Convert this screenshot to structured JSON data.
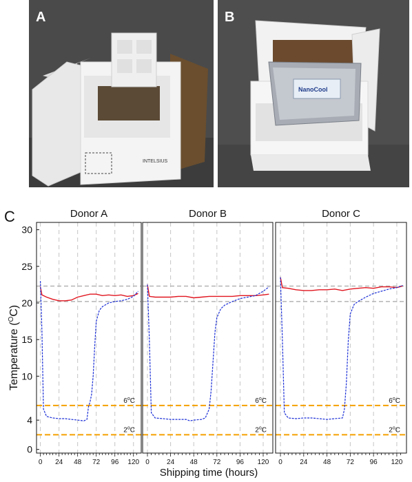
{
  "panels": {
    "a_label": "A",
    "b_label": "B",
    "c_label": "C",
    "b_pack_label": "NanoCool",
    "a_box_brand": "INTELSIUS"
  },
  "chart_data": {
    "type": "line",
    "ylabel_main": "Temperature (",
    "ylabel_unit": "C)",
    "ylabel_sup": "O",
    "xlabel": "Shipping time (hours)",
    "y_ticks": [
      0,
      4,
      10,
      15,
      20,
      25,
      30
    ],
    "ylim": [
      -0.5,
      31
    ],
    "x_ticks": [
      0,
      24,
      48,
      72,
      96,
      120
    ],
    "xlim": [
      -5,
      130
    ],
    "reference_lines": {
      "gray": [
        20.2,
        22.3
      ],
      "orange": [
        {
          "value": 6,
          "label": "6",
          "unit": "C"
        },
        {
          "value": 2,
          "label": "2",
          "unit": "C"
        }
      ]
    },
    "colors": {
      "ambient": "#e0141e",
      "internal": "#1a2ed6",
      "orange": "#f5a000",
      "gray": "#b4b4b4"
    },
    "panels": [
      {
        "title": "Donor A",
        "ambient": {
          "x": [
            0,
            2,
            8,
            16,
            24,
            32,
            40,
            48,
            56,
            64,
            72,
            80,
            88,
            96,
            104,
            112,
            120,
            126
          ],
          "y": [
            22.2,
            21.1,
            20.8,
            20.5,
            20.3,
            20.3,
            20.4,
            20.8,
            21.0,
            21.2,
            21.2,
            21.0,
            21.1,
            21.0,
            21.1,
            20.9,
            21.0,
            21.3
          ]
        },
        "internal": {
          "x": [
            0,
            2,
            4,
            8,
            16,
            24,
            32,
            40,
            48,
            56,
            60,
            62,
            64,
            66,
            68,
            70,
            72,
            76,
            80,
            88,
            96,
            104,
            112,
            120,
            126
          ],
          "y": [
            23,
            16,
            5.5,
            4.5,
            4.3,
            4.2,
            4.2,
            4.1,
            4.0,
            3.9,
            4.1,
            5.8,
            6.5,
            7.5,
            10,
            14,
            17.5,
            19.0,
            19.5,
            20.0,
            20.2,
            20.3,
            20.5,
            20.9,
            21.6
          ]
        }
      },
      {
        "title": "Donor B",
        "ambient": {
          "x": [
            0,
            2,
            8,
            16,
            24,
            32,
            40,
            48,
            56,
            64,
            72,
            80,
            88,
            96,
            104,
            112,
            120,
            126
          ],
          "y": [
            22.5,
            20.9,
            20.8,
            20.8,
            20.8,
            20.9,
            20.9,
            20.7,
            20.8,
            20.9,
            20.9,
            20.9,
            20.9,
            21.0,
            21.0,
            21.0,
            21.1,
            21.2
          ]
        },
        "internal": {
          "x": [
            0,
            2,
            4,
            8,
            16,
            24,
            32,
            40,
            44,
            48,
            56,
            60,
            64,
            66,
            68,
            70,
            72,
            76,
            80,
            88,
            96,
            104,
            112,
            120,
            126
          ],
          "y": [
            22.5,
            15,
            5.0,
            4.3,
            4.2,
            4.1,
            4.1,
            4.1,
            3.9,
            4.0,
            4.1,
            4.3,
            5.5,
            8.0,
            12.0,
            16,
            18.0,
            19.2,
            19.7,
            20.2,
            20.6,
            20.8,
            21.0,
            21.6,
            22.2
          ]
        }
      },
      {
        "title": "Donor C",
        "ambient": {
          "x": [
            0,
            2,
            8,
            16,
            24,
            32,
            40,
            48,
            56,
            64,
            72,
            80,
            88,
            96,
            104,
            112,
            120,
            126
          ],
          "y": [
            23.5,
            22.1,
            22.0,
            21.8,
            21.7,
            21.7,
            21.8,
            21.8,
            21.9,
            21.7,
            21.9,
            22.0,
            22.1,
            22.0,
            22.2,
            22.2,
            22.1,
            22.3
          ]
        },
        "internal": {
          "x": [
            0,
            2,
            4,
            8,
            16,
            24,
            32,
            40,
            48,
            56,
            64,
            66,
            68,
            70,
            72,
            76,
            80,
            88,
            96,
            104,
            112,
            120,
            126
          ],
          "y": [
            23.5,
            15,
            5.0,
            4.3,
            4.2,
            4.3,
            4.3,
            4.2,
            4.1,
            4.2,
            4.3,
            5.5,
            9.0,
            15.0,
            18.5,
            19.8,
            20.2,
            20.8,
            21.3,
            21.6,
            21.9,
            22.1,
            22.4
          ]
        }
      }
    ]
  }
}
